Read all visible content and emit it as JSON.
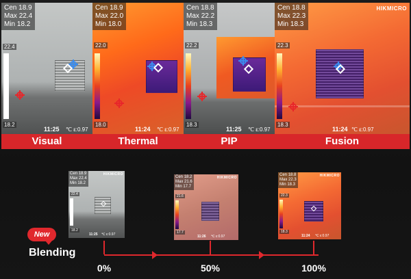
{
  "panels": [
    {
      "caption": "Visual",
      "cen_label": "Cen",
      "cen": "18.9",
      "max_label": "Max",
      "max": "22.4",
      "min_label": "Min",
      "min": "18.2",
      "scale_top": "22.4",
      "scale_bottom": "18.2",
      "time": "11:25",
      "unit": "℃",
      "emis": "ε:0.97"
    },
    {
      "caption": "Thermal",
      "cen_label": "Cen",
      "cen": "18.9",
      "max_label": "Max",
      "max": "22.0",
      "min_label": "Min",
      "min": "18.0",
      "scale_top": "22.0",
      "scale_bottom": "18.0",
      "time": "11:24",
      "unit": "℃",
      "emis": "ε:0.97"
    },
    {
      "caption": "PIP",
      "cen_label": "Cen",
      "cen": "18.8",
      "max_label": "Max",
      "max": "22.2",
      "min_label": "Min",
      "min": "18.3",
      "scale_top": "22.2",
      "scale_bottom": "18.3",
      "time": "11:25",
      "unit": "℃",
      "emis": "ε:0.97"
    },
    {
      "caption": "Fusion",
      "cen_label": "Cen",
      "cen": "18.8",
      "max_label": "Max",
      "max": "22.3",
      "min_label": "Min",
      "min": "18.3",
      "scale_top": "22.3",
      "scale_bottom": "18.3",
      "time": "11:24",
      "unit": "℃",
      "emis": "ε:0.97",
      "logo": "HIKMICRO"
    }
  ],
  "thumbs": [
    {
      "cen_label": "Cen",
      "cen": "18.9",
      "max_label": "Max",
      "max": "22.4",
      "min_label": "Min",
      "min": "18.2",
      "scale_top": "22.4",
      "scale_bottom": "18.2",
      "time": "11:25",
      "unit": "℃",
      "emis": "ε:0.97",
      "logo": "HIKMICRO",
      "percent": "0%"
    },
    {
      "cen_label": "Cen",
      "cen": "18.2",
      "max_label": "Max",
      "max": "21.6",
      "min_label": "Min",
      "min": "17.7",
      "scale_top": "21.6",
      "scale_bottom": "17.7",
      "time": "11:26",
      "unit": "℃",
      "emis": "ε:0.97",
      "logo": "HIKMICRO",
      "percent": "50%"
    },
    {
      "cen_label": "Cen",
      "cen": "18.8",
      "max_label": "Max",
      "max": "22.3",
      "min_label": "Min",
      "min": "18.3",
      "scale_top": "22.3",
      "scale_bottom": "18.3",
      "time": "11:24",
      "unit": "℃",
      "emis": "ε:0.97",
      "logo": "HIKMICRO",
      "percent": "100%"
    }
  ],
  "badge": "New",
  "blending_label": "Blending",
  "colors": {
    "accent": "#e0282d",
    "caption_bg": "#d8262a",
    "cross_red": "#e8262a",
    "cross_blue": "#3a8df0"
  }
}
